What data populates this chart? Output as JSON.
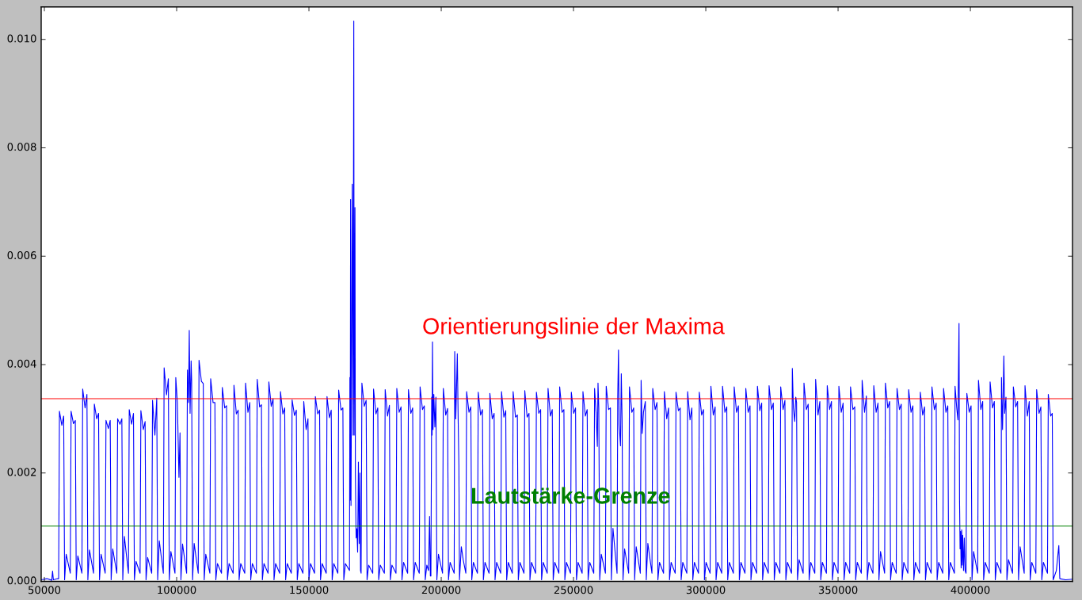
{
  "chart_data": {
    "type": "line",
    "x": [
      48800,
      51000,
      52800,
      53100,
      53400,
      55000,
      55400,
      55700,
      56600,
      57300,
      57650,
      58250,
      59800,
      60100,
      61000,
      61700,
      62050,
      62650,
      64190,
      64490,
      65390,
      66090,
      66440,
      67040,
      68590,
      68890,
      69790,
      70490,
      70840,
      71440,
      72990,
      73290,
      74190,
      74890,
      75240,
      75840,
      77390,
      77690,
      78590,
      79290,
      79640,
      80240,
      81780,
      82080,
      82980,
      83680,
      84030,
      84630,
      86180,
      86480,
      87380,
      88080,
      88430,
      89030,
      90580,
      90880,
      91780,
      92480,
      92830,
      93430,
      94970,
      95270,
      96170,
      96870,
      97220,
      97820,
      99370,
      99670,
      100270,
      100870,
      101270,
      101620,
      102220,
      103770,
      104070,
      104470,
      104770,
      105070,
      105470,
      105670,
      106020,
      106620,
      108160,
      108460,
      109360,
      110060,
      110410,
      111010,
      112560,
      112860,
      113760,
      114460,
      114810,
      115410,
      116960,
      117260,
      118160,
      118860,
      119210,
      119810,
      121360,
      121660,
      122560,
      123260,
      123610,
      124210,
      125750,
      126050,
      126950,
      127650,
      128000,
      128600,
      130150,
      130450,
      131350,
      132050,
      132400,
      133000,
      134550,
      134850,
      135750,
      136450,
      136800,
      137400,
      138940,
      139240,
      140140,
      140840,
      141190,
      141790,
      143340,
      143640,
      144540,
      145240,
      145590,
      146190,
      147740,
      148040,
      148940,
      149640,
      149990,
      150590,
      152130,
      152430,
      153330,
      154030,
      154380,
      154980,
      156530,
      156830,
      157730,
      158430,
      158780,
      159380,
      160930,
      161230,
      162130,
      162830,
      163180,
      163780,
      165330,
      165480,
      165600,
      165750,
      165900,
      166380,
      166680,
      166950,
      167100,
      167400,
      167550,
      167830,
      168120,
      168410,
      168700,
      169000,
      169280,
      169500,
      169720,
      170020,
      170920,
      171620,
      171970,
      172570,
      174120,
      174420,
      175320,
      176020,
      176370,
      176970,
      178520,
      178820,
      179720,
      180420,
      180770,
      181370,
      182910,
      183210,
      184110,
      184810,
      185160,
      185760,
      187310,
      187610,
      188510,
      189210,
      189560,
      190160,
      191710,
      192010,
      192910,
      193610,
      193960,
      194560,
      195200,
      195600,
      195900,
      196100,
      196400,
      196550,
      196700,
      196900,
      197200,
      197600,
      198000,
      198350,
      198950,
      200500,
      200800,
      201700,
      202400,
      202750,
      203350,
      204900,
      205100,
      205500,
      205800,
      206080,
      206400,
      206680,
      206900,
      207600,
      208300,
      209300,
      209600,
      210500,
      211200,
      211550,
      212150,
      213690,
      213990,
      214890,
      215590,
      215940,
      216540,
      218090,
      218390,
      219290,
      219990,
      220340,
      220940,
      222490,
      222790,
      223690,
      224390,
      224740,
      225340,
      226880,
      227180,
      228080,
      228780,
      229130,
      229730,
      231280,
      231580,
      232480,
      233180,
      233530,
      234130,
      235680,
      235980,
      236880,
      237580,
      237930,
      238530,
      240070,
      240370,
      241270,
      241970,
      242320,
      242920,
      244470,
      244770,
      245670,
      246370,
      246720,
      247320,
      248870,
      249170,
      250070,
      250770,
      251120,
      251720,
      253270,
      253570,
      254470,
      255170,
      255520,
      256120,
      257660,
      257960,
      258560,
      259010,
      259260,
      259560,
      259910,
      260510,
      262060,
      262360,
      263260,
      263960,
      264310,
      264910,
      266460,
      266710,
      267000,
      267260,
      267760,
      268060,
      268360,
      268710,
      269310,
      270850,
      271150,
      272050,
      272750,
      273100,
      273700,
      275250,
      275550,
      275950,
      276450,
      277150,
      277500,
      278100,
      279650,
      279950,
      280850,
      281550,
      281900,
      282500,
      284040,
      284340,
      285240,
      285940,
      286290,
      286890,
      288440,
      288740,
      289640,
      290340,
      290690,
      291290,
      292840,
      293140,
      294040,
      294740,
      295090,
      295690,
      297240,
      297540,
      298440,
      299140,
      299490,
      300090,
      301630,
      301930,
      302830,
      303530,
      303880,
      304480,
      306030,
      306330,
      307230,
      307930,
      308280,
      308880,
      310430,
      310730,
      311630,
      312330,
      312680,
      313280,
      314820,
      315120,
      316020,
      316720,
      317070,
      317670,
      319220,
      319520,
      320420,
      321120,
      321470,
      322070,
      323620,
      323920,
      324820,
      325520,
      325870,
      326470,
      328010,
      328310,
      329210,
      329910,
      330260,
      330860,
      332410,
      332710,
      333110,
      333610,
      334010,
      334310,
      334660,
      335260,
      336810,
      337110,
      338010,
      338710,
      339060,
      339660,
      341210,
      341510,
      342410,
      343110,
      343460,
      344060,
      345600,
      345900,
      346800,
      347500,
      347850,
      348450,
      350000,
      350300,
      351200,
      351900,
      352250,
      352850,
      354400,
      354700,
      355600,
      356300,
      356650,
      357250,
      358790,
      359090,
      359990,
      360690,
      361040,
      361640,
      363190,
      363490,
      364390,
      365090,
      365440,
      366040,
      367590,
      367890,
      368790,
      369490,
      369840,
      370440,
      371980,
      372280,
      373180,
      373880,
      374230,
      374830,
      376380,
      376680,
      377580,
      378280,
      378630,
      379230,
      380780,
      381080,
      381980,
      382680,
      383030,
      383630,
      385180,
      385480,
      386380,
      387080,
      387430,
      388030,
      389570,
      389870,
      390770,
      391470,
      391820,
      392420,
      393970,
      394210,
      394810,
      395310,
      395710,
      395910,
      396110,
      396310,
      396510,
      396710,
      396910,
      397110,
      397410,
      397710,
      398000,
      398370,
      398670,
      399570,
      400270,
      400620,
      401220,
      402760,
      403060,
      403960,
      404660,
      405010,
      405610,
      407160,
      407460,
      408360,
      409060,
      409410,
      410010,
      411560,
      411760,
      412160,
      412660,
      412960,
      413460,
      413810,
      414410,
      415950,
      416250,
      417150,
      417850,
      418200,
      418800,
      420350,
      420650,
      421550,
      422250,
      422600,
      423200,
      424750,
      425050,
      425950,
      426650,
      427000,
      427600,
      429150,
      429450,
      430350,
      430950,
      431300,
      432500,
      433430,
      433800,
      436000,
      438600
    ],
    "series": [
      {
        "color": "#0000ff",
        "values": [
          3e-05,
          5e-05,
          2e-05,
          0.00019,
          3e-05,
          5e-05,
          5e-05,
          0.00314,
          0.00288,
          0.00305,
          3e-05,
          0.0005,
          0.00015,
          0.00314,
          0.00291,
          0.00297,
          3e-05,
          0.00047,
          0.00015,
          0.00355,
          0.0032,
          0.00345,
          3e-05,
          0.00058,
          0.00015,
          0.00327,
          0.003,
          0.0031,
          3e-05,
          0.0005,
          0.00015,
          0.00297,
          0.00282,
          0.00297,
          3e-05,
          0.0006,
          0.00015,
          0.003,
          0.0029,
          0.003,
          3e-05,
          0.00083,
          0.00015,
          0.00317,
          0.0029,
          0.0031,
          3e-05,
          0.00037,
          0.00015,
          0.00315,
          0.0028,
          0.00295,
          3e-05,
          0.00044,
          0.00015,
          0.00334,
          0.0027,
          0.00338,
          3e-05,
          0.00075,
          0.00015,
          0.00394,
          0.00344,
          0.00374,
          3e-05,
          0.00055,
          0.00015,
          0.00376,
          0.0033,
          0.00192,
          0.00274,
          3e-05,
          0.00069,
          0.00015,
          0.0039,
          0.0033,
          0.00463,
          0.0031,
          0.00407,
          0.0037,
          3e-05,
          0.0007,
          0.00015,
          0.00408,
          0.00369,
          0.00365,
          3e-05,
          0.0005,
          0.00015,
          0.00374,
          0.0033,
          0.0033,
          3e-05,
          0.00033,
          0.00015,
          0.00358,
          0.0032,
          0.00324,
          3e-05,
          0.00033,
          0.00015,
          0.00362,
          0.00309,
          0.00316,
          3e-05,
          0.00033,
          0.00015,
          0.00366,
          0.00312,
          0.0033,
          3e-05,
          0.00033,
          0.00015,
          0.00373,
          0.00322,
          0.00326,
          3e-05,
          0.00033,
          0.00015,
          0.00368,
          0.00323,
          0.00337,
          3e-05,
          0.00033,
          0.00015,
          0.0035,
          0.00309,
          0.0032,
          3e-05,
          0.00033,
          0.00015,
          0.00335,
          0.00306,
          0.00316,
          3e-05,
          0.00033,
          0.00015,
          0.00332,
          0.0028,
          0.003,
          3e-05,
          0.00033,
          0.00015,
          0.00341,
          0.00309,
          0.00316,
          3e-05,
          0.00033,
          0.00015,
          0.00341,
          0.00302,
          0.00316,
          3e-05,
          0.00033,
          0.00015,
          0.00353,
          0.00316,
          0.0032,
          3e-05,
          0.00033,
          0.0002,
          0.00376,
          0.0015,
          0.00705,
          0.0014,
          0.00733,
          0.0027,
          0.01034,
          0.0027,
          0.0069,
          0.002,
          0.0008,
          0.00097,
          0.00054,
          0.0022,
          0.0007,
          0.002,
          0.0002,
          0.00015,
          0.00366,
          0.00323,
          0.00334,
          3e-05,
          0.0003,
          0.00015,
          0.00355,
          0.00309,
          0.0032,
          3e-05,
          0.0003,
          0.00015,
          0.00354,
          0.00305,
          0.00325,
          3e-05,
          0.0003,
          0.00015,
          0.00356,
          0.00312,
          0.00322,
          3e-05,
          0.00035,
          0.00015,
          0.00354,
          0.0031,
          0.0032,
          3e-05,
          0.00035,
          0.00015,
          0.00359,
          0.00317,
          0.00324,
          3e-05,
          0.0003,
          0.0002,
          0.0012,
          0.0001,
          0.0001,
          0.0034,
          0.0027,
          0.00442,
          0.0028,
          0.00345,
          0.00285,
          0.0034,
          3e-05,
          0.0005,
          0.00015,
          0.00356,
          0.00307,
          0.00319,
          3e-05,
          0.00035,
          0.00015,
          0.00424,
          0.003,
          0.0036,
          0.0042,
          0.003,
          0.00215,
          3e-05,
          0.00064,
          0.0004,
          0.00015,
          0.0035,
          0.00312,
          0.00322,
          3e-05,
          0.00035,
          0.00015,
          0.00349,
          0.00307,
          0.00317,
          3e-05,
          0.00035,
          0.00015,
          0.00347,
          0.003,
          0.0031,
          3e-05,
          0.00035,
          0.00015,
          0.0035,
          0.00303,
          0.00315,
          3e-05,
          0.00035,
          0.00015,
          0.0035,
          0.00303,
          0.00307,
          3e-05,
          0.00035,
          0.00015,
          0.00352,
          0.00303,
          0.0031,
          3e-05,
          0.00035,
          0.00015,
          0.00349,
          0.0031,
          0.00317,
          3e-05,
          0.00035,
          0.00015,
          0.00356,
          0.00305,
          0.00317,
          3e-05,
          0.00035,
          0.00015,
          0.00359,
          0.00312,
          0.00317,
          3e-05,
          0.00035,
          0.00015,
          0.00349,
          0.0031,
          0.0032,
          3e-05,
          0.00035,
          0.00015,
          0.0035,
          0.00305,
          0.00317,
          3e-05,
          0.00035,
          0.00015,
          0.00356,
          0.0031,
          0.00249,
          0.00366,
          0.0032,
          3e-05,
          0.0005,
          0.00015,
          0.0036,
          0.00317,
          0.0032,
          3e-05,
          0.00098,
          0.00015,
          0.0034,
          0.00427,
          0.0029,
          0.0025,
          0.00383,
          0.003,
          3e-05,
          0.0006,
          0.00015,
          0.00359,
          0.00312,
          0.0032,
          3e-05,
          0.00064,
          0.00015,
          0.00371,
          0.00273,
          0.00312,
          0.00332,
          3e-05,
          0.0007,
          0.00015,
          0.00356,
          0.00317,
          0.0033,
          3e-05,
          0.00035,
          0.00015,
          0.0035,
          0.003,
          0.0032,
          3e-05,
          0.00035,
          0.00015,
          0.00349,
          0.00315,
          0.0032,
          3e-05,
          0.00035,
          0.00015,
          0.0035,
          0.00298,
          0.0032,
          3e-05,
          0.00035,
          0.00015,
          0.00349,
          0.00307,
          0.00317,
          3e-05,
          0.00035,
          0.00015,
          0.0036,
          0.00307,
          0.00322,
          3e-05,
          0.00035,
          0.00015,
          0.0036,
          0.00312,
          0.00322,
          3e-05,
          0.00035,
          0.00015,
          0.00359,
          0.00312,
          0.00324,
          3e-05,
          0.00035,
          0.00015,
          0.00356,
          0.00312,
          0.00324,
          3e-05,
          0.00035,
          0.00015,
          0.0036,
          0.00315,
          0.00329,
          3e-05,
          0.00035,
          0.00015,
          0.00361,
          0.00317,
          0.00329,
          3e-05,
          0.00035,
          0.00015,
          0.00359,
          0.00317,
          0.00334,
          3e-05,
          0.00035,
          0.00015,
          0.00393,
          0.0032,
          0.00295,
          0.0034,
          0.0033,
          3e-05,
          0.0004,
          0.00015,
          0.00366,
          0.00317,
          0.00327,
          3e-05,
          0.00035,
          0.00015,
          0.00373,
          0.00307,
          0.00332,
          3e-05,
          0.00035,
          0.00015,
          0.00361,
          0.00317,
          0.00332,
          3e-05,
          0.00035,
          0.00015,
          0.0036,
          0.00312,
          0.00329,
          3e-05,
          0.00035,
          0.00015,
          0.00359,
          0.00317,
          0.00322,
          3e-05,
          0.00035,
          0.00015,
          0.00371,
          0.00312,
          0.00342,
          3e-05,
          0.00035,
          0.00015,
          0.00361,
          0.00312,
          0.00329,
          3e-05,
          0.00055,
          0.00015,
          0.00366,
          0.0032,
          0.00332,
          3e-05,
          0.00035,
          0.00015,
          0.00356,
          0.00317,
          0.00327,
          3e-05,
          0.00035,
          0.00015,
          0.00354,
          0.00312,
          0.00324,
          3e-05,
          0.00035,
          0.00015,
          0.00349,
          0.00307,
          0.00322,
          3e-05,
          0.00035,
          0.00015,
          0.00359,
          0.00317,
          0.00329,
          3e-05,
          0.00035,
          0.00015,
          0.00356,
          0.00312,
          0.00324,
          3e-05,
          0.00035,
          0.00015,
          0.0036,
          0.00322,
          0.00298,
          0.00476,
          0.0015,
          0.0006,
          0.00092,
          0.00025,
          0.00095,
          0.0003,
          0.00085,
          0.0002,
          0.0008,
          0.0002,
          0.00015,
          0.00347,
          0.00312,
          0.00324,
          3e-05,
          0.00055,
          0.00015,
          0.00371,
          0.00317,
          0.00332,
          3e-05,
          0.00035,
          0.00015,
          0.00368,
          0.0032,
          0.00332,
          3e-05,
          0.00035,
          0.00015,
          0.00376,
          0.0028,
          0.00416,
          0.0031,
          0.0034,
          3e-05,
          0.0004,
          0.00015,
          0.00359,
          0.00322,
          0.00332,
          3e-05,
          0.00064,
          0.00015,
          0.00361,
          0.00305,
          0.00332,
          3e-05,
          0.00035,
          0.00015,
          0.00354,
          0.0031,
          0.00322,
          3e-05,
          0.00035,
          0.00015,
          0.00345,
          0.00305,
          0.0031,
          3e-05,
          0.0002,
          0.00066,
          5e-05,
          3e-05,
          4e-05
        ]
      }
    ],
    "xlim": [
      48800,
      438600
    ],
    "ylim": [
      0,
      0.0106
    ],
    "xticks": [
      50000,
      100000,
      150000,
      200000,
      250000,
      300000,
      350000,
      400000
    ],
    "yticks": [
      {
        "value": 0,
        "label": "0.000"
      },
      {
        "value": 0.002,
        "label": "0.002"
      },
      {
        "value": 0.004,
        "label": "0.004"
      },
      {
        "value": 0.006,
        "label": "0.006"
      },
      {
        "value": 0.008,
        "label": "0.008"
      },
      {
        "value": 0.01,
        "label": "0.010"
      }
    ],
    "ref_lines": [
      {
        "axis": "y",
        "value": 0.00337,
        "label": "Orientierungslinie der Maxima",
        "color": "#ff0000"
      },
      {
        "axis": "y",
        "value": 0.00102,
        "label": "Lautstärke-Grenze",
        "color": "#008000"
      }
    ]
  }
}
